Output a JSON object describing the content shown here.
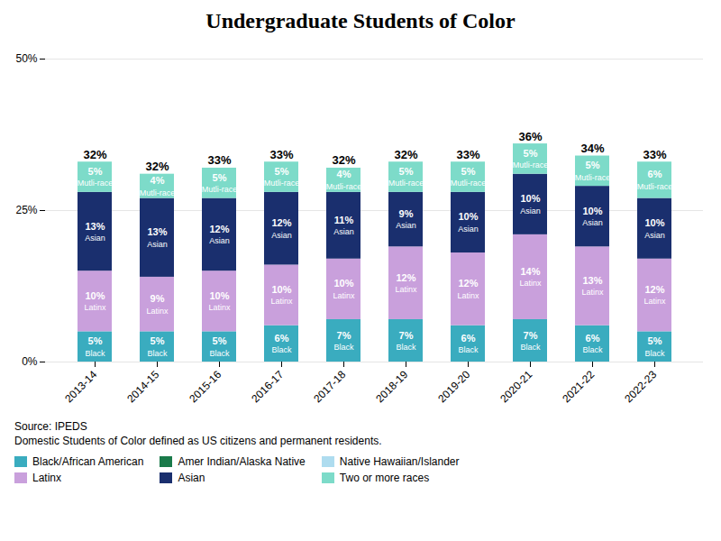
{
  "chart_data": {
    "type": "bar",
    "stacked": true,
    "title": "Undergraduate Students of Color",
    "categories": [
      "2013-14",
      "2014-15",
      "2015-16",
      "2016-17",
      "2017-18",
      "2018-19",
      "2019-20",
      "2020-21",
      "2021-22",
      "2022-23"
    ],
    "series": [
      {
        "name": "Black",
        "color": "#3aacbf",
        "values": [
          5,
          5,
          5,
          6,
          7,
          7,
          6,
          7,
          6,
          5
        ],
        "value_labels": [
          "5%",
          "5%",
          "5%",
          "6%",
          "7%",
          "7%",
          "6%",
          "7%",
          "6%",
          "5%"
        ]
      },
      {
        "name": "Latinx",
        "color": "#c9a0dc",
        "values": [
          10,
          9,
          10,
          10,
          10,
          12,
          12,
          14,
          13,
          12
        ],
        "value_labels": [
          "10%",
          "9%",
          "10%",
          "10%",
          "10%",
          "12%",
          "12%",
          "14%",
          "13%",
          "12%"
        ]
      },
      {
        "name": "Asian",
        "color": "#1a2f6e",
        "values": [
          13,
          13,
          12,
          12,
          11,
          9,
          10,
          10,
          10,
          10
        ],
        "value_labels": [
          "13%",
          "13%",
          "12%",
          "12%",
          "11%",
          "9%",
          "10%",
          "10%",
          "10%",
          "10%"
        ]
      },
      {
        "name": "Mutli-race",
        "color": "#7ddbc9",
        "values": [
          5,
          4,
          5,
          5,
          4,
          5,
          5,
          5,
          5,
          6
        ],
        "value_labels": [
          "5%",
          "4%",
          "5%",
          "5%",
          "4%",
          "5%",
          "5%",
          "5%",
          "5%",
          "6%"
        ]
      }
    ],
    "total_labels": [
      "32%",
      "32%",
      "33%",
      "33%",
      "32%",
      "32%",
      "33%",
      "36%",
      "34%",
      "33%"
    ],
    "data_labels": true,
    "ylim": [
      0,
      50
    ],
    "yticks": [
      {
        "value": 0,
        "label": "0%"
      },
      {
        "value": 25,
        "label": "25%"
      },
      {
        "value": 50,
        "label": "50%"
      }
    ],
    "grid": true,
    "source": [
      "Source: IPEDS",
      "Domestic Students of Color defined as US citizens and permanent residents."
    ],
    "legend": "bottom",
    "legend_items": [
      {
        "label": "Black/African American",
        "color": "#3aacbf"
      },
      {
        "label": "Amer Indian/Alaska Native",
        "color": "#1a7a4a"
      },
      {
        "label": "Native Hawaiian/Islander",
        "color": "#aedcef"
      },
      {
        "label": "Latinx",
        "color": "#c9a0dc"
      },
      {
        "label": "Asian",
        "color": "#1a2f6e"
      },
      {
        "label": "Two or more races",
        "color": "#7ddbc9"
      }
    ]
  }
}
